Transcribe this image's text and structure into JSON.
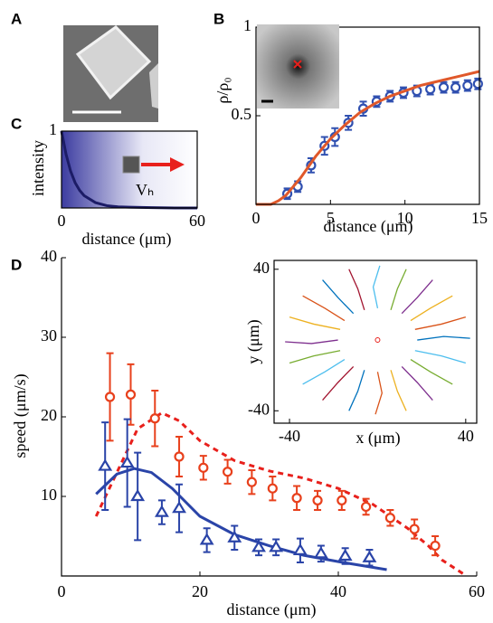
{
  "chart_data": [
    {
      "type": "image",
      "panel": "A"
    },
    {
      "type": "line",
      "panel": "B",
      "xlabel": "distance (μm)",
      "ylabel": "ρ/ρ₀",
      "xlim": [
        0,
        15
      ],
      "ylim": [
        0,
        1
      ],
      "xticks": [
        0,
        5,
        10,
        15
      ],
      "yticks": [
        0.5,
        1
      ],
      "box": true,
      "series": [
        {
          "mode": "markers",
          "marker": "circle",
          "color": "#3050b0",
          "x": [
            2.1,
            2.8,
            3.7,
            4.6,
            5.3,
            6.2,
            7.2,
            8.1,
            9.0,
            9.9,
            10.8,
            11.7,
            12.6,
            13.4,
            14.2,
            14.9
          ],
          "values": [
            0.06,
            0.1,
            0.22,
            0.33,
            0.38,
            0.46,
            0.54,
            0.58,
            0.61,
            0.63,
            0.64,
            0.65,
            0.66,
            0.66,
            0.67,
            0.68
          ],
          "errors": [
            0.03,
            0.03,
            0.04,
            0.05,
            0.05,
            0.04,
            0.04,
            0.03,
            0.03,
            0.03,
            0.03,
            0.03,
            0.03,
            0.03,
            0.03,
            0.03
          ]
        },
        {
          "mode": "line",
          "style": "solid",
          "color": "#e0582a",
          "x": [
            0,
            1,
            1.5,
            2,
            3,
            4,
            5,
            6,
            7,
            8,
            9,
            10,
            11,
            12,
            13,
            14,
            15
          ],
          "values": [
            0,
            0,
            0.02,
            0.05,
            0.15,
            0.27,
            0.37,
            0.45,
            0.52,
            0.57,
            0.61,
            0.64,
            0.67,
            0.69,
            0.71,
            0.73,
            0.75
          ]
        }
      ]
    },
    {
      "type": "line",
      "panel": "C",
      "xlabel": "distance (μm)",
      "ylabel": "intensity",
      "annotation": "Vₕ",
      "xlim": [
        0,
        60
      ],
      "ylim": [
        0,
        1
      ],
      "xticks": [
        0,
        60
      ],
      "yticks": [
        1
      ],
      "box": true,
      "series": [
        {
          "mode": "line",
          "style": "solid",
          "color": "#1c1c66",
          "x": [
            0,
            2,
            4,
            6,
            8,
            10,
            15,
            20,
            25,
            30,
            40,
            50,
            60
          ],
          "values": [
            1,
            0.7,
            0.48,
            0.33,
            0.23,
            0.16,
            0.07,
            0.03,
            0.015,
            0.01,
            0.005,
            0,
            0
          ]
        }
      ]
    },
    {
      "type": "line",
      "panel": "D",
      "xlabel": "distance (μm)",
      "ylabel": "speed (μm/s)",
      "xlim": [
        0,
        60
      ],
      "ylim": [
        0,
        40
      ],
      "xticks": [
        0,
        20,
        40,
        60
      ],
      "yticks": [
        10,
        20,
        30,
        40
      ],
      "box": false,
      "series": [
        {
          "mode": "line",
          "style": "dashed",
          "color": "#e8201c",
          "x": [
            5,
            8,
            11,
            14.5,
            17,
            20,
            25,
            30,
            35,
            40,
            45,
            50,
            53,
            55,
            58
          ],
          "values": [
            7.5,
            13,
            18.5,
            20.5,
            19.5,
            17,
            14.5,
            13.2,
            12.3,
            11,
            9,
            6,
            3.8,
            2,
            0.3
          ]
        },
        {
          "mode": "line",
          "style": "solid",
          "color": "#2a44a8",
          "x": [
            5,
            8,
            10.5,
            13,
            16,
            20,
            25,
            30,
            35,
            40,
            47
          ],
          "values": [
            10.3,
            12.8,
            13.5,
            13,
            11,
            7.5,
            5.2,
            3.8,
            2.6,
            1.8,
            0.8
          ]
        },
        {
          "mode": "markers",
          "marker": "circle",
          "color": "#e8401c",
          "x": [
            7,
            10,
            13.5,
            17,
            20.5,
            24,
            27.5,
            30.5,
            34,
            37,
            40.5,
            44,
            47.5,
            51,
            54
          ],
          "values": [
            22.5,
            22.8,
            19.8,
            15,
            13.6,
            13.1,
            11.8,
            11,
            9.8,
            9.5,
            9.5,
            8.7,
            7.3,
            5.9,
            3.8
          ],
          "errors": [
            5.5,
            3.8,
            3.5,
            2.5,
            1.5,
            1.5,
            1.5,
            1.5,
            1.5,
            1.2,
            1.2,
            1,
            1,
            1.2,
            1.2
          ]
        },
        {
          "mode": "markers",
          "marker": "triangle",
          "color": "#2a44a8",
          "x": [
            6.3,
            9.5,
            11,
            14.5,
            17,
            21,
            25,
            28.5,
            31,
            34.5,
            37.5,
            41,
            44.5
          ],
          "values": [
            13.8,
            14.2,
            10,
            8,
            8.5,
            4.5,
            4.8,
            3.6,
            3.6,
            3.2,
            2.8,
            2.5,
            2.3
          ],
          "errors": [
            5.5,
            5.5,
            5.5,
            1.5,
            3,
            1.5,
            1.5,
            1,
            1,
            1.5,
            1,
            1,
            1
          ]
        }
      ]
    },
    {
      "type": "trajectories",
      "xlabel": "x (μm)",
      "ylabel": "y (μm)",
      "xlim": [
        -47,
        45
      ],
      "ylim": [
        -47,
        45
      ],
      "xticks": [
        -40,
        40
      ],
      "yticks": [
        -40,
        40
      ],
      "box": true,
      "origin": {
        "x": 0,
        "y": 0,
        "color": "#e8201c"
      },
      "series": [
        {
          "color": "#0072bd",
          "x": [
            18,
            30,
            42
          ],
          "y": [
            0,
            2,
            1
          ]
        },
        {
          "color": "#d95319",
          "x": [
            17,
            29,
            40
          ],
          "y": [
            6,
            9,
            13
          ]
        },
        {
          "color": "#edb120",
          "x": [
            15,
            24,
            34
          ],
          "y": [
            11,
            18,
            25
          ]
        },
        {
          "color": "#7e2f8e",
          "x": [
            11,
            18,
            25
          ],
          "y": [
            15,
            24,
            34
          ]
        },
        {
          "color": "#77ac30",
          "x": [
            6,
            9,
            13
          ],
          "y": [
            17,
            29,
            40
          ]
        },
        {
          "color": "#4dbeee",
          "x": [
            0,
            -2,
            1
          ],
          "y": [
            18,
            30,
            42
          ]
        },
        {
          "color": "#a2142f",
          "x": [
            -6,
            -9,
            -13
          ],
          "y": [
            17,
            29,
            40
          ]
        },
        {
          "color": "#0072bd",
          "x": [
            -11,
            -18,
            -25
          ],
          "y": [
            15,
            24,
            34
          ]
        },
        {
          "color": "#d95319",
          "x": [
            -15,
            -24,
            -34
          ],
          "y": [
            11,
            18,
            25
          ]
        },
        {
          "color": "#edb120",
          "x": [
            -17,
            -29,
            -40
          ],
          "y": [
            6,
            9,
            13
          ]
        },
        {
          "color": "#7e2f8e",
          "x": [
            -18,
            -30,
            -42
          ],
          "y": [
            0,
            -2,
            -1
          ]
        },
        {
          "color": "#77ac30",
          "x": [
            -17,
            -29,
            -40
          ],
          "y": [
            -6,
            -9,
            -13
          ]
        },
        {
          "color": "#4dbeee",
          "x": [
            -15,
            -24,
            -34
          ],
          "y": [
            -11,
            -18,
            -25
          ]
        },
        {
          "color": "#a2142f",
          "x": [
            -11,
            -18,
            -25
          ],
          "y": [
            -15,
            -24,
            -34
          ]
        },
        {
          "color": "#0072bd",
          "x": [
            -6,
            -9,
            -13
          ],
          "y": [
            -17,
            -29,
            -40
          ]
        },
        {
          "color": "#d95319",
          "x": [
            0,
            2,
            -1
          ],
          "y": [
            -18,
            -30,
            -42
          ]
        },
        {
          "color": "#edb120",
          "x": [
            6,
            9,
            13
          ],
          "y": [
            -17,
            -29,
            -40
          ]
        },
        {
          "color": "#7e2f8e",
          "x": [
            11,
            18,
            25
          ],
          "y": [
            -15,
            -24,
            -34
          ]
        },
        {
          "color": "#77ac30",
          "x": [
            15,
            24,
            34
          ],
          "y": [
            -11,
            -18,
            -25
          ]
        },
        {
          "color": "#4dbeee",
          "x": [
            17,
            29,
            40
          ],
          "y": [
            -6,
            -9,
            -13
          ]
        }
      ]
    }
  ]
}
